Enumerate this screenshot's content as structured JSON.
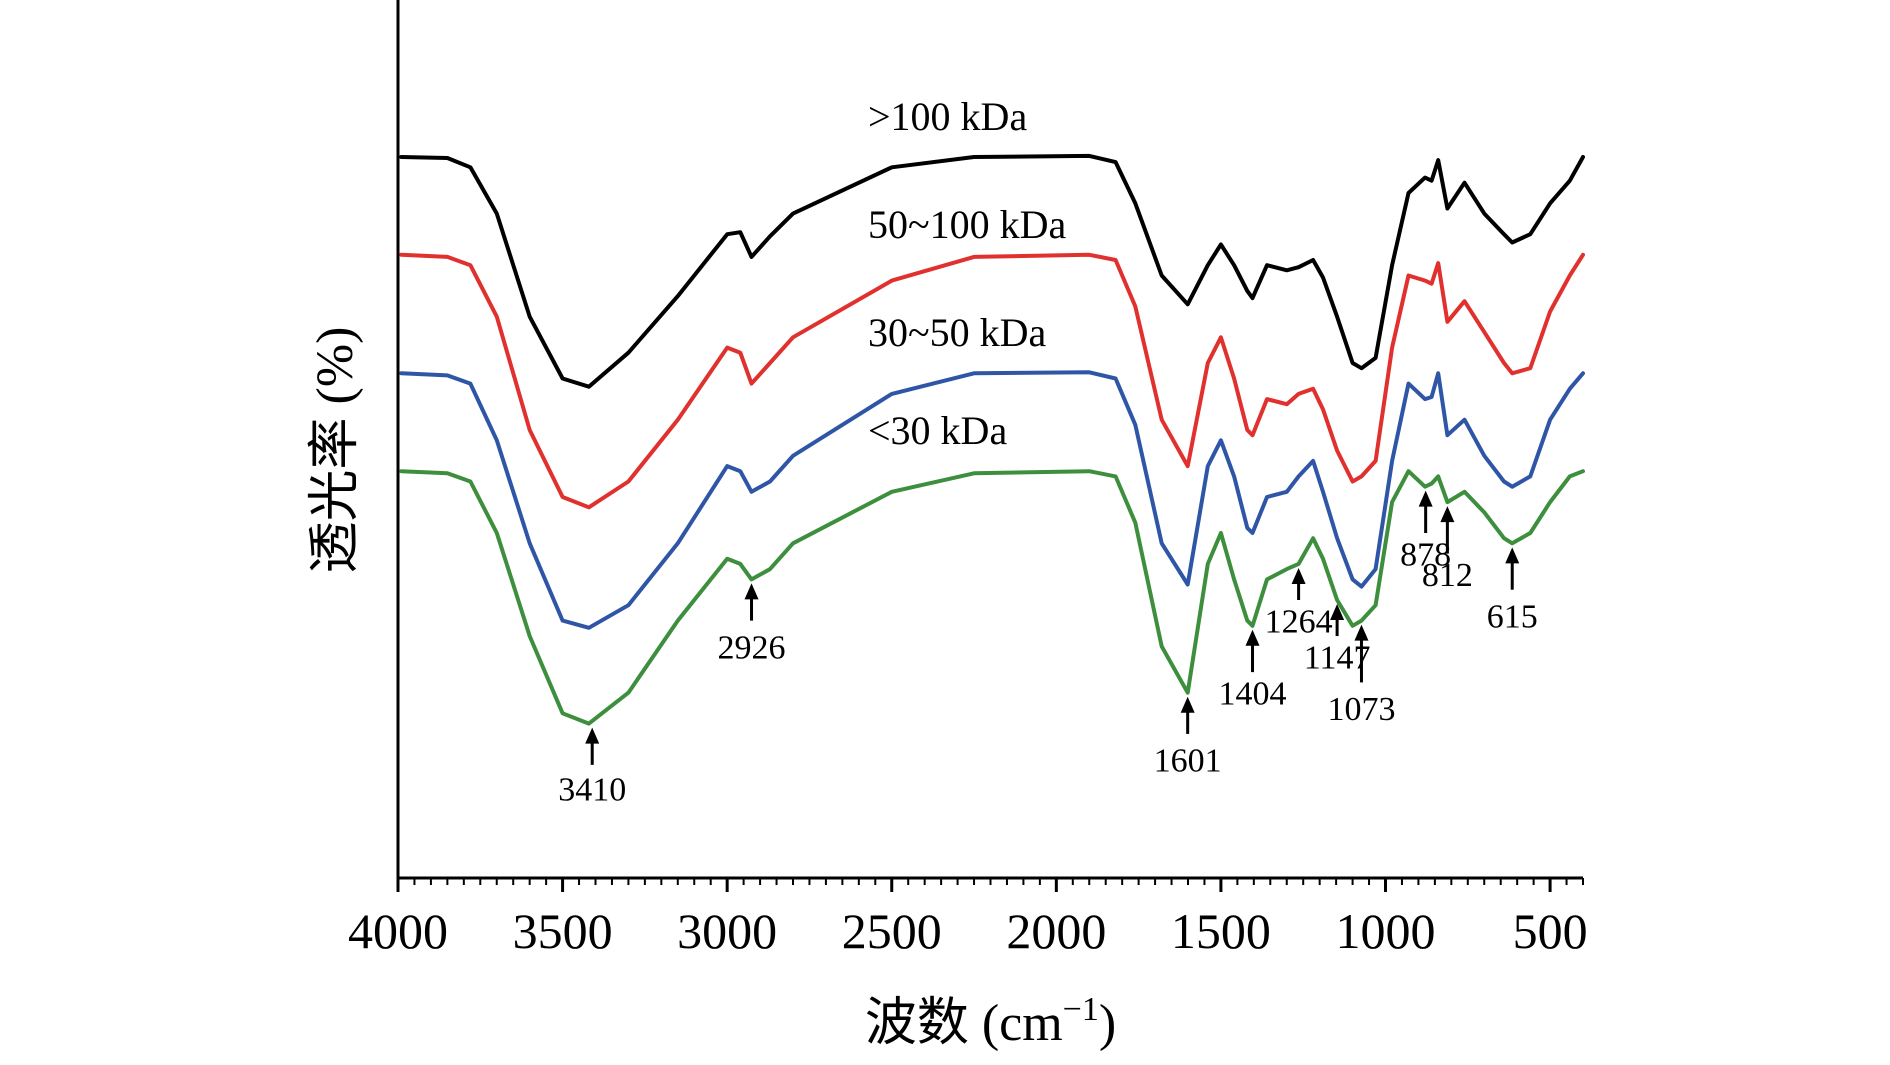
{
  "chart_data": {
    "type": "line",
    "xlabel": "波数 (cm",
    "xlabel_sup": "−1",
    "xlabel_close": ")",
    "ylabel": "透光率 (%)",
    "xlim": [
      4000,
      400
    ],
    "x_reversed": true,
    "x_ticks": [
      4000,
      3500,
      3000,
      2500,
      2000,
      1500,
      1000,
      500
    ],
    "x_tick_labels": [
      "4000",
      "3500",
      "3000",
      "2500",
      "2000",
      "1500",
      "1000",
      "500"
    ],
    "ylim": [
      0,
      6.6
    ],
    "y_ticks_shown": false,
    "grid": false,
    "legend": "inline labels above each trace",
    "series": [
      {
        "name": ">100 kDa",
        "color": "#000000",
        "label_wavenumber": 3300,
        "label_level": 6.35,
        "points": [
          [
            3990,
            5.95
          ],
          [
            3850,
            5.94
          ],
          [
            3780,
            5.85
          ],
          [
            3700,
            5.4
          ],
          [
            3600,
            4.4
          ],
          [
            3500,
            3.8
          ],
          [
            3420,
            3.72
          ],
          [
            3300,
            4.05
          ],
          [
            3150,
            4.6
          ],
          [
            3000,
            5.2
          ],
          [
            2960,
            5.22
          ],
          [
            2926,
            4.98
          ],
          [
            2870,
            5.18
          ],
          [
            2800,
            5.4
          ],
          [
            2500,
            5.85
          ],
          [
            2250,
            5.95
          ],
          [
            1900,
            5.96
          ],
          [
            1820,
            5.9
          ],
          [
            1760,
            5.5
          ],
          [
            1680,
            4.8
          ],
          [
            1601,
            4.52
          ],
          [
            1540,
            4.9
          ],
          [
            1500,
            5.1
          ],
          [
            1460,
            4.9
          ],
          [
            1420,
            4.65
          ],
          [
            1404,
            4.58
          ],
          [
            1360,
            4.9
          ],
          [
            1300,
            4.85
          ],
          [
            1264,
            4.88
          ],
          [
            1220,
            4.95
          ],
          [
            1190,
            4.78
          ],
          [
            1147,
            4.4
          ],
          [
            1100,
            3.95
          ],
          [
            1073,
            3.9
          ],
          [
            1030,
            4.0
          ],
          [
            980,
            4.9
          ],
          [
            930,
            5.6
          ],
          [
            880,
            5.75
          ],
          [
            860,
            5.72
          ],
          [
            840,
            5.92
          ],
          [
            812,
            5.45
          ],
          [
            760,
            5.7
          ],
          [
            700,
            5.4
          ],
          [
            640,
            5.2
          ],
          [
            615,
            5.12
          ],
          [
            560,
            5.2
          ],
          [
            500,
            5.5
          ],
          [
            440,
            5.72
          ],
          [
            400,
            5.95
          ]
        ]
      },
      {
        "name": "50~100 kDa",
        "color": "#e0312e",
        "label_wavenumber": 3300,
        "label_level": 5.3,
        "points": [
          [
            3990,
            5.0
          ],
          [
            3850,
            4.98
          ],
          [
            3780,
            4.9
          ],
          [
            3700,
            4.4
          ],
          [
            3600,
            3.3
          ],
          [
            3500,
            2.65
          ],
          [
            3420,
            2.55
          ],
          [
            3300,
            2.8
          ],
          [
            3150,
            3.4
          ],
          [
            3000,
            4.1
          ],
          [
            2960,
            4.05
          ],
          [
            2926,
            3.75
          ],
          [
            2870,
            3.95
          ],
          [
            2800,
            4.2
          ],
          [
            2500,
            4.75
          ],
          [
            2250,
            4.98
          ],
          [
            1900,
            5.0
          ],
          [
            1820,
            4.95
          ],
          [
            1760,
            4.5
          ],
          [
            1680,
            3.4
          ],
          [
            1601,
            2.95
          ],
          [
            1540,
            3.95
          ],
          [
            1500,
            4.2
          ],
          [
            1460,
            3.8
          ],
          [
            1420,
            3.3
          ],
          [
            1404,
            3.25
          ],
          [
            1360,
            3.6
          ],
          [
            1300,
            3.55
          ],
          [
            1264,
            3.65
          ],
          [
            1220,
            3.7
          ],
          [
            1190,
            3.5
          ],
          [
            1147,
            3.1
          ],
          [
            1100,
            2.8
          ],
          [
            1073,
            2.85
          ],
          [
            1030,
            3.0
          ],
          [
            980,
            4.1
          ],
          [
            930,
            4.8
          ],
          [
            880,
            4.75
          ],
          [
            860,
            4.72
          ],
          [
            840,
            4.92
          ],
          [
            812,
            4.35
          ],
          [
            760,
            4.55
          ],
          [
            700,
            4.25
          ],
          [
            640,
            3.95
          ],
          [
            615,
            3.85
          ],
          [
            560,
            3.9
          ],
          [
            500,
            4.45
          ],
          [
            440,
            4.8
          ],
          [
            400,
            5.0
          ]
        ]
      },
      {
        "name": "30~50 kDa",
        "color": "#2f56a6",
        "label_wavenumber": 3300,
        "label_level": 4.25,
        "points": [
          [
            3990,
            3.85
          ],
          [
            3850,
            3.83
          ],
          [
            3780,
            3.75
          ],
          [
            3700,
            3.2
          ],
          [
            3600,
            2.2
          ],
          [
            3500,
            1.45
          ],
          [
            3420,
            1.38
          ],
          [
            3300,
            1.6
          ],
          [
            3150,
            2.2
          ],
          [
            3000,
            2.95
          ],
          [
            2960,
            2.9
          ],
          [
            2926,
            2.7
          ],
          [
            2870,
            2.8
          ],
          [
            2800,
            3.05
          ],
          [
            2500,
            3.65
          ],
          [
            2250,
            3.85
          ],
          [
            1900,
            3.86
          ],
          [
            1820,
            3.8
          ],
          [
            1760,
            3.35
          ],
          [
            1680,
            2.2
          ],
          [
            1601,
            1.8
          ],
          [
            1540,
            2.95
          ],
          [
            1500,
            3.2
          ],
          [
            1460,
            2.85
          ],
          [
            1420,
            2.35
          ],
          [
            1404,
            2.3
          ],
          [
            1360,
            2.65
          ],
          [
            1300,
            2.7
          ],
          [
            1264,
            2.85
          ],
          [
            1220,
            3.0
          ],
          [
            1190,
            2.7
          ],
          [
            1147,
            2.25
          ],
          [
            1100,
            1.85
          ],
          [
            1073,
            1.78
          ],
          [
            1030,
            1.95
          ],
          [
            980,
            3.0
          ],
          [
            930,
            3.75
          ],
          [
            880,
            3.6
          ],
          [
            860,
            3.62
          ],
          [
            840,
            3.85
          ],
          [
            812,
            3.25
          ],
          [
            760,
            3.4
          ],
          [
            700,
            3.05
          ],
          [
            640,
            2.8
          ],
          [
            615,
            2.75
          ],
          [
            560,
            2.85
          ],
          [
            500,
            3.4
          ],
          [
            440,
            3.7
          ],
          [
            400,
            3.85
          ]
        ]
      },
      {
        "name": "<30 kDa",
        "color": "#3d8f3e",
        "label_wavenumber": 3300,
        "label_level": 3.3,
        "points": [
          [
            3990,
            2.9
          ],
          [
            3850,
            2.88
          ],
          [
            3780,
            2.8
          ],
          [
            3700,
            2.3
          ],
          [
            3600,
            1.3
          ],
          [
            3500,
            0.55
          ],
          [
            3420,
            0.45
          ],
          [
            3300,
            0.75
          ],
          [
            3150,
            1.45
          ],
          [
            3000,
            2.05
          ],
          [
            2960,
            2.0
          ],
          [
            2926,
            1.85
          ],
          [
            2870,
            1.95
          ],
          [
            2800,
            2.2
          ],
          [
            2500,
            2.7
          ],
          [
            2250,
            2.88
          ],
          [
            1900,
            2.9
          ],
          [
            1820,
            2.85
          ],
          [
            1760,
            2.4
          ],
          [
            1680,
            1.2
          ],
          [
            1601,
            0.75
          ],
          [
            1540,
            2.0
          ],
          [
            1500,
            2.3
          ],
          [
            1460,
            1.85
          ],
          [
            1420,
            1.45
          ],
          [
            1404,
            1.4
          ],
          [
            1360,
            1.85
          ],
          [
            1300,
            1.95
          ],
          [
            1264,
            2.0
          ],
          [
            1220,
            2.25
          ],
          [
            1190,
            2.05
          ],
          [
            1147,
            1.65
          ],
          [
            1100,
            1.4
          ],
          [
            1073,
            1.45
          ],
          [
            1030,
            1.6
          ],
          [
            980,
            2.6
          ],
          [
            930,
            2.9
          ],
          [
            880,
            2.75
          ],
          [
            860,
            2.78
          ],
          [
            840,
            2.85
          ],
          [
            812,
            2.6
          ],
          [
            760,
            2.7
          ],
          [
            700,
            2.5
          ],
          [
            640,
            2.25
          ],
          [
            615,
            2.2
          ],
          [
            560,
            2.3
          ],
          [
            500,
            2.6
          ],
          [
            440,
            2.85
          ],
          [
            400,
            2.9
          ]
        ]
      }
    ],
    "annotations": [
      {
        "label": "3410",
        "wavenumber": 3410,
        "tip_level": 0.45,
        "tail_level": 0.05,
        "text_level": -0.18,
        "side": "below"
      },
      {
        "label": "2926",
        "wavenumber": 2926,
        "tip_level": 1.85,
        "tail_level": 1.45,
        "text_level": 1.2,
        "side": "below"
      },
      {
        "label": "1601",
        "wavenumber": 1601,
        "tip_level": 0.75,
        "tail_level": 0.35,
        "text_level": 0.1,
        "side": "below"
      },
      {
        "label": "1404",
        "wavenumber": 1404,
        "tip_level": 1.4,
        "tail_level": 0.95,
        "text_level": 0.75,
        "side": "below"
      },
      {
        "label": "1264",
        "wavenumber": 1264,
        "tip_level": 2.0,
        "tail_level": 1.65,
        "text_level": 1.45,
        "side": "below"
      },
      {
        "label": "1147",
        "wavenumber": 1147,
        "tip_level": 1.65,
        "tail_level": 1.3,
        "text_level": 1.1,
        "side": "below"
      },
      {
        "label": "1073",
        "wavenumber": 1073,
        "tip_level": 1.45,
        "tail_level": 0.85,
        "text_level": 0.6,
        "side": "below"
      },
      {
        "label": "878",
        "wavenumber": 878,
        "tip_level": 2.75,
        "tail_level": 2.3,
        "text_level": 2.1,
        "side": "below"
      },
      {
        "label": "812",
        "wavenumber": 812,
        "tip_level": 2.6,
        "tail_level": 2.1,
        "text_level": 1.9,
        "side": "below"
      },
      {
        "label": "615",
        "wavenumber": 615,
        "tip_level": 2.2,
        "tail_level": 1.75,
        "text_level": 1.5,
        "side": "below"
      }
    ]
  }
}
